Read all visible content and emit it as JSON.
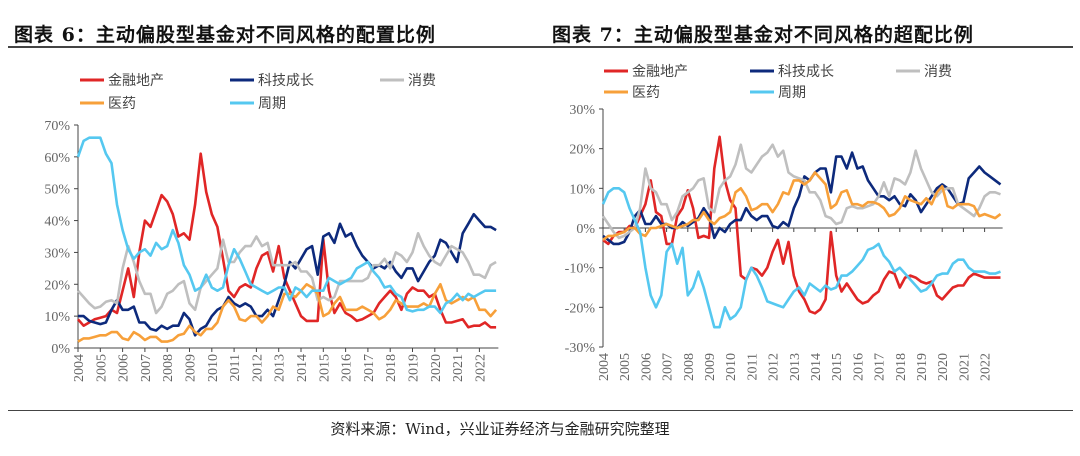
{
  "source": "资料来源：Wind，兴业证券经济与金融研究院整理",
  "colors": {
    "金融地产": "#e02626",
    "科技成长": "#0d2a7c",
    "消费": "#bfbfbf",
    "医药": "#f7a03a",
    "周期": "#55c8f0"
  },
  "chart_data": [
    {
      "type": "line",
      "title": "图表 6：主动偏股型基金对不同风格的配置比例",
      "ylim": [
        0,
        70
      ],
      "yticks": [
        "0%",
        "10%",
        "20%",
        "30%",
        "40%",
        "50%",
        "60%",
        "70%"
      ],
      "xticks": [
        "2004",
        "2005",
        "2006",
        "2007",
        "2008",
        "2009",
        "2010",
        "2011",
        "2012",
        "2013",
        "2014",
        "2015",
        "2016",
        "2017",
        "2018",
        "2019",
        "2020",
        "2021",
        "2022"
      ],
      "x_start": 2004,
      "x_step": 0.25,
      "legend": "top-left",
      "series": [
        {
          "name": "金融地产",
          "values": [
            9,
            7,
            8,
            9,
            9.5,
            10,
            12,
            11,
            18,
            25,
            16,
            30,
            40,
            38,
            43,
            48,
            46,
            42,
            35,
            36,
            34,
            45,
            61,
            49,
            42,
            38,
            28,
            18,
            16,
            19,
            20,
            19,
            25,
            29,
            30,
            24,
            32,
            22,
            18,
            14,
            10,
            8.5,
            8.5,
            8.5,
            34,
            18,
            11,
            14,
            11,
            10,
            8.5,
            9,
            10,
            11,
            14,
            16,
            18,
            16,
            12,
            17,
            19,
            18,
            18,
            16,
            17,
            12,
            8,
            8,
            8.5,
            9,
            6.5,
            7,
            7,
            8,
            6.5,
            6.5
          ]
        },
        {
          "name": "科技成长",
          "values": [
            10,
            10,
            8.5,
            8,
            7.5,
            8,
            12,
            15,
            12,
            12,
            13,
            8,
            8,
            6,
            5.5,
            7,
            6,
            7,
            7,
            11,
            9,
            4,
            6,
            7,
            10,
            12,
            13,
            16,
            14,
            13,
            14,
            13,
            10,
            10,
            12,
            10,
            15,
            20,
            27,
            25,
            28,
            31,
            32,
            23,
            35,
            36,
            33,
            39,
            35,
            36,
            32,
            29,
            27,
            25,
            26,
            25,
            27,
            24,
            22,
            25,
            25,
            21,
            24,
            27,
            29,
            34,
            33,
            30,
            27,
            36,
            39,
            42,
            40,
            38,
            38,
            37
          ]
        },
        {
          "name": "消费",
          "values": [
            18,
            16,
            14,
            12.5,
            13,
            14.5,
            15,
            14,
            25,
            32,
            27,
            21,
            17,
            17,
            11,
            13,
            17,
            18,
            20,
            21,
            14,
            12,
            19,
            21,
            23,
            25,
            34,
            27,
            27,
            30,
            32,
            32,
            35,
            32,
            33,
            26,
            26,
            26,
            26,
            27,
            24,
            24,
            22,
            15,
            16,
            15,
            16,
            21,
            21,
            21,
            21,
            21,
            22,
            26,
            26,
            28,
            25,
            30,
            29,
            27,
            30,
            36,
            32,
            29,
            27,
            26,
            29,
            32,
            31,
            30,
            27,
            23,
            23,
            22,
            26,
            27
          ]
        },
        {
          "name": "医药",
          "values": [
            2,
            3,
            3,
            3.5,
            4,
            4,
            5,
            5,
            3,
            2.5,
            5,
            4,
            2.5,
            3.5,
            3.5,
            2,
            2,
            2.5,
            4,
            4.5,
            7,
            5,
            4,
            6,
            6,
            8,
            13,
            15,
            13,
            9,
            8.5,
            10,
            10,
            8,
            10,
            13,
            12,
            17,
            17,
            16,
            18,
            20,
            19,
            17,
            10,
            11,
            14,
            16,
            12,
            12,
            12,
            13,
            12,
            11,
            9,
            10,
            12,
            15,
            14,
            13,
            13,
            13,
            14,
            13,
            17,
            20,
            15,
            14,
            15,
            16,
            15,
            16,
            12,
            12,
            10,
            12
          ]
        },
        {
          "name": "周期",
          "values": [
            60,
            65,
            66,
            66,
            66,
            61,
            58,
            45,
            37,
            31,
            28,
            30,
            31,
            29,
            33,
            31,
            32,
            37,
            33,
            26,
            23,
            18,
            19,
            23,
            19,
            18,
            19,
            26,
            31,
            28,
            24,
            20,
            19,
            18,
            17,
            18,
            19,
            19,
            15,
            19,
            18,
            16,
            18,
            18,
            18,
            22,
            21,
            20,
            21,
            22,
            25,
            26,
            27,
            24,
            22,
            19,
            19.5,
            17,
            16,
            12,
            11.5,
            12,
            12,
            13,
            13,
            11,
            14,
            15,
            17,
            15,
            17,
            16,
            17,
            18,
            18,
            18
          ]
        }
      ]
    },
    {
      "type": "line",
      "title": "图表 7：主动偏股型基金对不同风格的超配比例",
      "ylim": [
        -30,
        30
      ],
      "yticks": [
        "-30%",
        "-20%",
        "-10%",
        "0%",
        "10%",
        "20%",
        "30%"
      ],
      "xticks": [
        "2004",
        "2005",
        "2006",
        "2007",
        "2008",
        "2009",
        "2010",
        "2011",
        "2012",
        "2013",
        "2014",
        "2015",
        "2016",
        "2017",
        "2018",
        "2019",
        "2020",
        "2021",
        "2022"
      ],
      "x_start": 2004,
      "x_step": 0.25,
      "legend": "top-left",
      "series": [
        {
          "name": "金融地产",
          "values": [
            -3,
            -4,
            -2,
            -1,
            -1,
            0.5,
            0,
            3,
            6,
            12,
            4,
            3,
            -4,
            -4,
            3,
            5,
            9.5,
            5,
            -2.5,
            -2,
            -2.5,
            15,
            23,
            12,
            7,
            5,
            -12,
            -13,
            -10,
            -10.5,
            -12,
            -10,
            -6,
            -3,
            -9,
            -3.5,
            -12,
            -16,
            -18,
            -21,
            -21.5,
            -20.5,
            -18,
            -1,
            -12,
            -16,
            -14,
            -16,
            -18,
            -19,
            -18.5,
            -17,
            -16,
            -13,
            -11,
            -11.5,
            -15,
            -12.5,
            -12,
            -12.5,
            -13.5,
            -14,
            -13.5,
            -17,
            -18,
            -16.5,
            -15,
            -14.5,
            -14.5,
            -12.5,
            -11.5,
            -12,
            -12.5,
            -12.5,
            -12.5,
            -12.5
          ]
        },
        {
          "name": "科技成长",
          "values": [
            -2,
            -3,
            -4,
            -4,
            -3.5,
            -1,
            3,
            4.5,
            1,
            1,
            3,
            1,
            1,
            0,
            0,
            1.5,
            0.5,
            1.5,
            2.5,
            5,
            3,
            -2.5,
            0,
            -1,
            1,
            2,
            2,
            5,
            3,
            2,
            3,
            3,
            0.5,
            0,
            1.5,
            0.5,
            5,
            8,
            13,
            12,
            14,
            15,
            15,
            9,
            18,
            18,
            15,
            19,
            15,
            15.5,
            12,
            10,
            8,
            8,
            7,
            8,
            6,
            5.5,
            8.5,
            7,
            4,
            6,
            8,
            10,
            11,
            10,
            8,
            6,
            6.5,
            12.5,
            14,
            15.5,
            14,
            13,
            12,
            11
          ]
        },
        {
          "name": "消费",
          "values": [
            3,
            1,
            -1,
            -2.5,
            -2,
            -1,
            0,
            5,
            15,
            10,
            9,
            6,
            6,
            2,
            4,
            8,
            9,
            10,
            12,
            12.5,
            5,
            4,
            10,
            12,
            13,
            16,
            21,
            15,
            14,
            16,
            18,
            19,
            21,
            18,
            19.5,
            14,
            13,
            12.5,
            12,
            9,
            9,
            7,
            3,
            2.5,
            1,
            1.5,
            5,
            5.5,
            5,
            5,
            5.5,
            6,
            8,
            11.5,
            8,
            12.5,
            12,
            11,
            14,
            19.5,
            15,
            12,
            9,
            8,
            9.5,
            10,
            10,
            6,
            5,
            4,
            3,
            5,
            8,
            9,
            9,
            8.5
          ]
        },
        {
          "name": "医药",
          "values": [
            -3,
            -2,
            -2,
            -1.5,
            -1,
            0,
            0,
            -1.5,
            -2,
            0,
            0,
            0.5,
            1,
            0.5,
            0,
            0.5,
            1,
            2,
            2,
            4,
            2,
            1,
            2.5,
            3,
            4,
            9,
            10,
            8,
            4.5,
            5,
            6,
            6,
            4,
            6,
            9,
            8.5,
            12,
            12,
            11,
            12,
            14,
            12.5,
            11,
            5,
            6,
            9,
            9.5,
            6,
            6,
            5.5,
            6.5,
            6.5,
            6,
            5,
            3,
            3.5,
            5,
            8,
            7,
            6.5,
            6,
            7.5,
            6,
            9,
            10.5,
            5.5,
            5,
            6,
            6,
            6,
            5.5,
            3,
            3.5,
            3,
            2.5,
            3.5
          ]
        },
        {
          "name": "周期",
          "values": [
            6,
            9,
            10,
            10,
            9,
            5,
            2,
            -1,
            -10,
            -17,
            -20,
            -17,
            -6,
            -4,
            -9,
            -5,
            -17,
            -15,
            -11,
            -15,
            -20,
            -25,
            -25,
            -20,
            -23,
            -22,
            -20,
            -13,
            -10,
            -12,
            -15,
            -18.5,
            -19,
            -19.5,
            -20,
            -18,
            -16,
            -15,
            -17,
            -14,
            -15,
            -16,
            -14.5,
            -15.5,
            -15,
            -12,
            -12,
            -11,
            -9.5,
            -8,
            -5.5,
            -5,
            -4,
            -7,
            -8.5,
            -11,
            -10,
            -11.5,
            -13,
            -14.5,
            -16,
            -15.5,
            -14,
            -12,
            -11.5,
            -11.5,
            -9,
            -8,
            -8,
            -10,
            -11,
            -11,
            -11,
            -11.5,
            -11.5,
            -11
          ]
        }
      ]
    }
  ]
}
